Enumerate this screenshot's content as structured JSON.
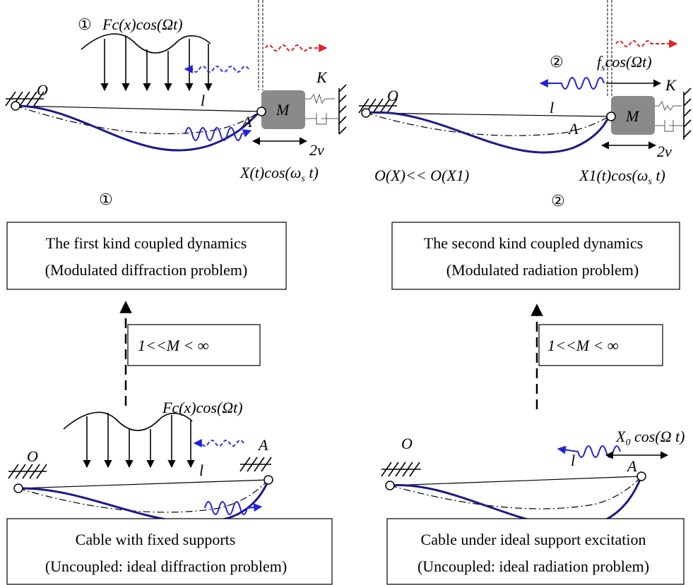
{
  "top_left": {
    "marker": "①",
    "load": "Fc(x)cos(Ωt)",
    "support": "O",
    "length": "l",
    "end": "A",
    "mass": "M",
    "spring": "K",
    "amplitude": "2v",
    "response": [
      "X(t)cos(ω",
      "s",
      " t)"
    ],
    "caption_marker": "①"
  },
  "top_right": {
    "marker": "②",
    "force": [
      "f",
      "s",
      "cos(Ωt)"
    ],
    "support": "O",
    "length": "l",
    "end": "A",
    "mass": "M",
    "spring": "K",
    "amplitude": "2v",
    "order": "O(X)<< O(X1)",
    "response": [
      "X1(t)cos(ω",
      "s",
      " t)"
    ],
    "caption_marker": "②"
  },
  "boxes": {
    "first_kind": [
      "The first kind coupled dynamics",
      "(Modulated diffraction problem)"
    ],
    "second_kind": [
      "The second kind coupled dynamics",
      "(Modulated radiation problem)"
    ],
    "fixed": [
      "Cable with fixed supports",
      "(Uncoupled: ideal diffraction problem)"
    ],
    "excited": [
      "Cable under ideal support excitation",
      "(Uncoupled: ideal radiation problem)"
    ]
  },
  "conditions": {
    "left": "1<<M < ∞",
    "right": "1<<M < ∞"
  },
  "bottom_left": {
    "load": "Fc(x)cos(Ωt)",
    "support": "O",
    "length": "l",
    "end": "A"
  },
  "bottom_right": {
    "support": "O",
    "length": "l",
    "end": "A",
    "excitation": [
      "X",
      "0",
      " cos(Ω t)"
    ]
  }
}
